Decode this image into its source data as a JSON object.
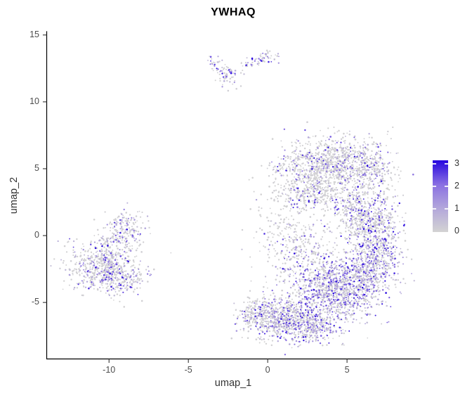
{
  "title": "YWHAQ",
  "seed": 42,
  "axes": {
    "x": {
      "label": "umap_1",
      "ticks": [
        -10,
        -5,
        0,
        5
      ]
    },
    "y": {
      "label": "umap_2",
      "ticks": [
        15,
        10,
        5,
        0,
        -5
      ]
    }
  },
  "legend": {
    "labels": [
      3,
      2,
      1,
      0
    ],
    "bar_ticks": [
      1,
      2,
      3
    ],
    "gradient_low_to_high": [
      "#d3d3d3",
      "#b3a7db",
      "#8a70e2",
      "#2606df"
    ]
  },
  "chart_data": {
    "type": "scatter",
    "title": "YWHAQ",
    "xlabel": "umap_1",
    "ylabel": "umap_2",
    "xlim": [
      -13.95,
      9.6
    ],
    "ylim": [
      -9.25,
      15.25
    ],
    "grid": "off",
    "legend_position": "right",
    "axis_color": "#000000",
    "tick_color": "#333333",
    "color_scale": {
      "low": "#d3d3d3",
      "high": "#0000ff",
      "limits": [
        0,
        3
      ]
    },
    "point_gradient": [
      "#d3d3d3",
      "#b3a7db",
      "#8a70e2",
      "#2606df"
    ],
    "clusters": [
      {
        "name": "left-main",
        "kind": "gauss",
        "cx": -10.6,
        "cy": -2.3,
        "sdx": 1.05,
        "sdy": 0.95,
        "n": 420,
        "colored_frac": 0.3
      },
      {
        "name": "left-lower",
        "kind": "gauss",
        "cx": -9.4,
        "cy": -3.1,
        "sdx": 0.85,
        "sdy": 0.75,
        "n": 260,
        "colored_frac": 0.32
      },
      {
        "name": "left-northeast",
        "kind": "gauss",
        "cx": -9.0,
        "cy": 0.5,
        "sdx": 0.6,
        "sdy": 0.75,
        "n": 160,
        "colored_frac": 0.35
      },
      {
        "name": "left-bridge",
        "kind": "gauss",
        "cx": -9.8,
        "cy": -0.9,
        "sdx": 0.65,
        "sdy": 0.8,
        "n": 120,
        "colored_frac": 0.25
      },
      {
        "name": "top-strand-left",
        "kind": "line",
        "x1": -3.75,
        "y1": 13.25,
        "x2": -2.4,
        "y2": 11.9,
        "jitter": 0.22,
        "n": 40,
        "colored_frac": 0.45
      },
      {
        "name": "top-blob-mid",
        "kind": "gauss",
        "cx": -2.35,
        "cy": 11.85,
        "sdx": 0.45,
        "sdy": 0.4,
        "n": 45,
        "colored_frac": 0.3
      },
      {
        "name": "top-strand-right",
        "kind": "line",
        "x1": -1.5,
        "y1": 12.75,
        "x2": 0.0,
        "y2": 13.4,
        "jitter": 0.18,
        "n": 40,
        "colored_frac": 0.45
      },
      {
        "name": "top-blob-right",
        "kind": "gauss",
        "cx": 0.0,
        "cy": 13.5,
        "sdx": 0.32,
        "sdy": 0.26,
        "n": 25,
        "colored_frac": 0.5
      },
      {
        "name": "right-top-lobe",
        "kind": "gauss",
        "cx": 4.0,
        "cy": 5.4,
        "sdx": 1.5,
        "sdy": 1.0,
        "n": 850,
        "colored_frac": 0.22
      },
      {
        "name": "right-top-right",
        "kind": "gauss",
        "cx": 6.5,
        "cy": 5.0,
        "sdx": 0.8,
        "sdy": 0.9,
        "n": 250,
        "colored_frac": 0.3
      },
      {
        "name": "right-top-fringe",
        "kind": "gauss",
        "cx": 2.0,
        "cy": 4.6,
        "sdx": 0.8,
        "sdy": 0.9,
        "n": 120,
        "colored_frac": 0.2
      },
      {
        "name": "right-neck",
        "kind": "gauss",
        "cx": 3.2,
        "cy": 3.2,
        "sdx": 1.0,
        "sdy": 0.7,
        "n": 300,
        "colored_frac": 0.25
      },
      {
        "name": "right-arc-upper",
        "kind": "gauss",
        "cx": 6.2,
        "cy": 1.5,
        "sdx": 1.0,
        "sdy": 1.1,
        "n": 550,
        "colored_frac": 0.38
      },
      {
        "name": "right-arc-mid",
        "kind": "gauss",
        "cx": 6.9,
        "cy": -1.2,
        "sdx": 0.8,
        "sdy": 1.2,
        "n": 450,
        "colored_frac": 0.45
      },
      {
        "name": "right-core",
        "kind": "gauss",
        "cx": 4.0,
        "cy": -4.0,
        "sdx": 1.4,
        "sdy": 1.2,
        "n": 1000,
        "colored_frac": 0.55
      },
      {
        "name": "right-core-right",
        "kind": "gauss",
        "cx": 6.0,
        "cy": -3.0,
        "sdx": 0.8,
        "sdy": 1.0,
        "n": 320,
        "colored_frac": 0.5
      },
      {
        "name": "right-core-bottom",
        "kind": "gauss",
        "cx": 2.9,
        "cy": -7.0,
        "sdx": 0.9,
        "sdy": 0.6,
        "n": 220,
        "colored_frac": 0.5
      },
      {
        "name": "right-bottom-lobe",
        "kind": "gauss",
        "cx": 1.2,
        "cy": -6.2,
        "sdx": 1.2,
        "sdy": 0.8,
        "n": 650,
        "colored_frac": 0.45
      },
      {
        "name": "right-tail",
        "kind": "gauss",
        "cx": -0.7,
        "cy": -5.9,
        "sdx": 0.6,
        "sdy": 0.6,
        "n": 200,
        "colored_frac": 0.35
      },
      {
        "name": "right-left-sparse",
        "kind": "gauss",
        "cx": 1.2,
        "cy": 0.5,
        "sdx": 1.0,
        "sdy": 2.0,
        "n": 220,
        "colored_frac": 0.12
      },
      {
        "name": "right-mid-sparse",
        "kind": "gauss",
        "cx": 2.2,
        "cy": -1.4,
        "sdx": 0.9,
        "sdy": 1.1,
        "n": 170,
        "colored_frac": 0.3
      }
    ],
    "stray_points": [
      {
        "x": 1.05,
        "y": 7.95,
        "v": 2.0
      },
      {
        "x": 0.65,
        "y": 4.85,
        "v": 2.6
      },
      {
        "x": 0.5,
        "y": 4.72,
        "v": 0.1
      },
      {
        "x": 0.78,
        "y": 4.95,
        "v": 0.05
      },
      {
        "x": -9.2,
        "y": 1.6,
        "v": 0.9
      },
      {
        "x": -9.05,
        "y": 1.35,
        "v": 0.05
      },
      {
        "x": -7.9,
        "y": -3.4,
        "v": 0.6
      }
    ]
  }
}
